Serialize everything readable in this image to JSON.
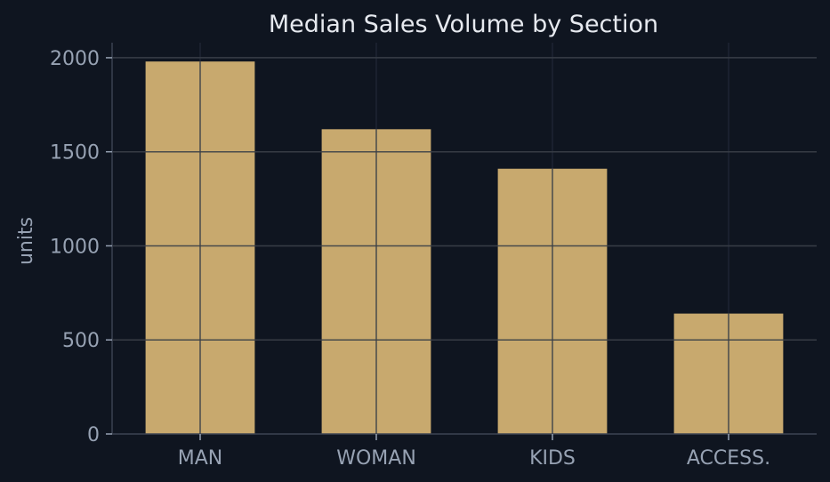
{
  "chart_data": {
    "type": "bar",
    "title": "Median Sales Volume by Section",
    "xlabel": "",
    "ylabel": "units",
    "categories": [
      "MAN",
      "WOMAN",
      "KIDS",
      "ACCESS."
    ],
    "values": [
      1980,
      1620,
      1410,
      640
    ],
    "ylim": [
      0,
      2080
    ],
    "yticks": [
      0,
      500,
      1000,
      1500,
      2000
    ],
    "grid": true,
    "legend": "none",
    "colors": {
      "bar": "#c8a96e",
      "background": "#0f1520",
      "grid_background": "#1e2533",
      "grid_over_bars": "#3a3f47",
      "axis": "#3a4250",
      "text": "#e6e9ef",
      "tick_text": "#97a2b3"
    }
  }
}
